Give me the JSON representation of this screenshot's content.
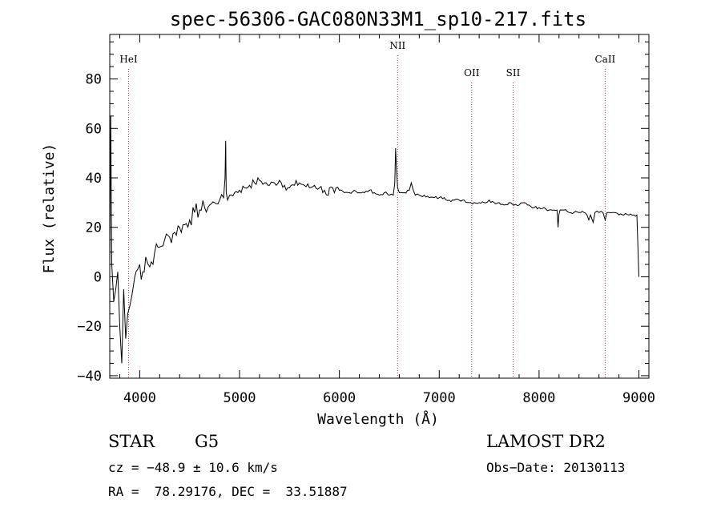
{
  "chart_data": {
    "type": "line",
    "title": "spec-56306-GAC080N33M1_sp10-217.fits",
    "xlabel": "Wavelength (Å)",
    "ylabel": "Flux (relative)",
    "xlim": [
      3700,
      9100
    ],
    "ylim": [
      -41,
      98
    ],
    "xticks": [
      4000,
      5000,
      6000,
      7000,
      8000,
      9000
    ],
    "yticks": [
      -40,
      -20,
      0,
      20,
      40,
      60,
      80
    ],
    "grid": false,
    "spectral_lines": [
      {
        "name": "HeI",
        "wavelength": 3889
      },
      {
        "name": "NII",
        "wavelength": 6583
      },
      {
        "name": "OII",
        "wavelength": 7325
      },
      {
        "name": "SII",
        "wavelength": 7740
      },
      {
        "name": "CaII",
        "wavelength": 8662
      }
    ],
    "series": [
      {
        "x": [
          3700,
          3710,
          3720,
          3740,
          3760,
          3780,
          3800,
          3820,
          3840,
          3860,
          3880,
          3900,
          3920,
          3950,
          3980,
          4000,
          4030,
          4060,
          4100,
          4150,
          4200,
          4250,
          4300,
          4350,
          4400,
          4450,
          4500,
          4550,
          4600,
          4650,
          4700,
          4750,
          4800,
          4840,
          4855,
          4861,
          4867,
          4880,
          4900,
          4950,
          5000,
          5050,
          5100,
          5150,
          5200,
          5250,
          5300,
          5350,
          5400,
          5450,
          5500,
          5550,
          5600,
          5650,
          5700,
          5750,
          5800,
          5850,
          5890,
          5900,
          5950,
          6000,
          6050,
          6100,
          6150,
          6200,
          6250,
          6300,
          6350,
          6400,
          6450,
          6500,
          6540,
          6555,
          6563,
          6570,
          6583,
          6600,
          6650,
          6700,
          6720,
          6740,
          6760,
          6800,
          6850,
          6900,
          6950,
          7000,
          7050,
          7100,
          7150,
          7200,
          7250,
          7300,
          7350,
          7400,
          7450,
          7500,
          7550,
          7600,
          7650,
          7700,
          7750,
          7800,
          7850,
          7900,
          7950,
          8000,
          8050,
          8100,
          8150,
          8180,
          8190,
          8198,
          8210,
          8250,
          8300,
          8350,
          8400,
          8450,
          8480,
          8498,
          8515,
          8542,
          8560,
          8600,
          8640,
          8662,
          8680,
          8700,
          8750,
          8800,
          8850,
          8900,
          8950,
          8980,
          9000
        ],
        "y": [
          2,
          65,
          5,
          -10,
          -5,
          2,
          -20,
          -35,
          -5,
          -25,
          -15,
          -12,
          -8,
          0,
          3,
          5,
          2,
          8,
          4,
          10,
          12,
          15,
          16,
          18,
          20,
          21,
          23,
          26,
          27,
          28,
          29,
          30,
          31,
          32,
          40,
          55,
          34,
          31,
          33,
          34,
          35,
          36,
          37,
          38,
          39,
          38,
          37,
          38,
          39,
          37,
          36,
          37,
          38,
          37,
          36,
          37,
          36,
          35,
          33,
          36,
          34,
          35,
          34,
          34,
          35,
          34,
          34,
          35,
          34,
          33,
          34,
          33,
          33,
          38,
          52,
          45,
          36,
          34,
          34,
          35,
          38,
          35,
          33,
          33,
          33,
          32,
          32,
          32,
          32,
          31,
          31,
          31,
          31,
          30,
          30,
          30,
          30,
          31,
          30,
          30,
          29,
          30,
          29,
          29,
          30,
          29,
          28,
          28,
          28,
          27,
          27,
          27,
          20,
          25,
          27,
          27,
          26,
          26,
          26,
          26,
          25,
          23,
          25,
          22,
          26,
          26,
          26,
          23,
          26,
          26,
          26,
          25,
          25,
          25,
          25,
          25,
          0
        ]
      }
    ]
  },
  "info": {
    "object_class": "STAR",
    "subclass": "G5",
    "survey": "LAMOST DR2",
    "redshift": "cz = −48.9 ± 10.6 km/s",
    "obs_date": "Obs−Date: 20130113",
    "coords": "RA =  78.29176, DEC =  33.51887"
  }
}
